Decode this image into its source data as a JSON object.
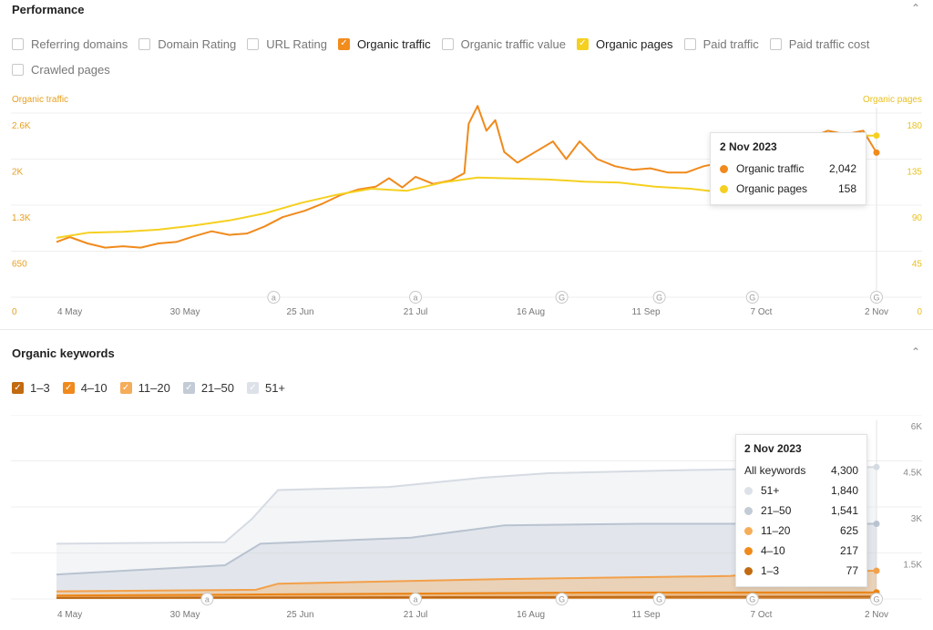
{
  "performance": {
    "title": "Performance",
    "checkboxes": [
      {
        "label": "Referring domains",
        "checked": false,
        "color": ""
      },
      {
        "label": "Domain Rating",
        "checked": false,
        "color": ""
      },
      {
        "label": "URL Rating",
        "checked": false,
        "color": ""
      },
      {
        "label": "Organic traffic",
        "checked": true,
        "color": "#f28c1c"
      },
      {
        "label": "Organic traffic value",
        "checked": false,
        "color": ""
      },
      {
        "label": "Organic pages",
        "checked": true,
        "color": "#f5d020"
      },
      {
        "label": "Paid traffic",
        "checked": false,
        "color": ""
      },
      {
        "label": "Paid traffic cost",
        "checked": false,
        "color": ""
      },
      {
        "label": "Crawled pages",
        "checked": false,
        "color": ""
      }
    ]
  },
  "keywords": {
    "title": "Organic keywords",
    "checkboxes": [
      {
        "label": "1–3",
        "color": "#c26a12"
      },
      {
        "label": "4–10",
        "color": "#f08a1c"
      },
      {
        "label": "11–20",
        "color": "#f5ad5a"
      },
      {
        "label": "21–50",
        "color": "#c3cbd6"
      },
      {
        "label": "51+",
        "color": "#dde1e8"
      }
    ]
  },
  "tooltip1": {
    "date": "2 Nov 2023",
    "rows": [
      {
        "label": "Organic traffic",
        "value": "2,042",
        "color": "#f08a1c"
      },
      {
        "label": "Organic pages",
        "value": "158",
        "color": "#f5d020"
      }
    ]
  },
  "tooltip2": {
    "date": "2 Nov 2023",
    "rows": [
      {
        "label": "All keywords",
        "value": "4,300",
        "color": ""
      },
      {
        "label": "51+",
        "value": "1,840",
        "color": "#dde1e8"
      },
      {
        "label": "21–50",
        "value": "1,541",
        "color": "#c3cbd6"
      },
      {
        "label": "11–20",
        "value": "625",
        "color": "#f5ad5a"
      },
      {
        "label": "4–10",
        "value": "217",
        "color": "#f08a1c"
      },
      {
        "label": "1–3",
        "value": "77",
        "color": "#c26a12"
      }
    ]
  },
  "chart_data": [
    {
      "type": "line",
      "left_axis_label": "Organic traffic",
      "right_axis_label": "Organic pages",
      "ylim_left": [
        0,
        2600
      ],
      "ylim_right": [
        0,
        180
      ],
      "y_ticks_left": [
        "0",
        "650",
        "1.3K",
        "2K",
        "2.6K"
      ],
      "y_ticks_right": [
        "0",
        "45",
        "90",
        "135",
        "180"
      ],
      "x_ticks": [
        "4 May",
        "30 May",
        "25 Jun",
        "21 Jul",
        "16 Aug",
        "11 Sep",
        "7 Oct",
        "2 Nov"
      ],
      "x_range": [
        "2023-05-01",
        "2023-11-02"
      ],
      "markers": [
        {
          "date": "2023-06-19",
          "label": "a"
        },
        {
          "date": "2023-07-21",
          "label": "a"
        },
        {
          "date": "2023-08-23",
          "label": "G"
        },
        {
          "date": "2023-09-14",
          "label": "G"
        },
        {
          "date": "2023-10-05",
          "label": "G"
        },
        {
          "date": "2023-11-02",
          "label": "G"
        }
      ],
      "series": [
        {
          "name": "Organic traffic",
          "axis": "left",
          "color": "#f08a1c",
          "points": [
            [
              "2023-05-01",
              780
            ],
            [
              "2023-05-04",
              850
            ],
            [
              "2023-05-08",
              760
            ],
            [
              "2023-05-12",
              700
            ],
            [
              "2023-05-16",
              720
            ],
            [
              "2023-05-20",
              700
            ],
            [
              "2023-05-24",
              760
            ],
            [
              "2023-05-28",
              780
            ],
            [
              "2023-06-01",
              860
            ],
            [
              "2023-06-05",
              930
            ],
            [
              "2023-06-09",
              880
            ],
            [
              "2023-06-13",
              900
            ],
            [
              "2023-06-17",
              1000
            ],
            [
              "2023-06-21",
              1130
            ],
            [
              "2023-06-26",
              1220
            ],
            [
              "2023-06-30",
              1320
            ],
            [
              "2023-07-04",
              1440
            ],
            [
              "2023-07-08",
              1520
            ],
            [
              "2023-07-12",
              1560
            ],
            [
              "2023-07-15",
              1680
            ],
            [
              "2023-07-18",
              1550
            ],
            [
              "2023-07-21",
              1700
            ],
            [
              "2023-07-25",
              1600
            ],
            [
              "2023-07-29",
              1650
            ],
            [
              "2023-08-01",
              1750
            ],
            [
              "2023-08-02",
              2450
            ],
            [
              "2023-08-04",
              2700
            ],
            [
              "2023-08-06",
              2350
            ],
            [
              "2023-08-08",
              2500
            ],
            [
              "2023-08-10",
              2050
            ],
            [
              "2023-08-13",
              1900
            ],
            [
              "2023-08-17",
              2050
            ],
            [
              "2023-08-21",
              2200
            ],
            [
              "2023-08-24",
              1950
            ],
            [
              "2023-08-27",
              2200
            ],
            [
              "2023-08-31",
              1950
            ],
            [
              "2023-09-04",
              1850
            ],
            [
              "2023-09-08",
              1800
            ],
            [
              "2023-09-12",
              1820
            ],
            [
              "2023-09-16",
              1760
            ],
            [
              "2023-09-20",
              1760
            ],
            [
              "2023-09-24",
              1850
            ],
            [
              "2023-09-28",
              1900
            ],
            [
              "2023-10-02",
              2050
            ],
            [
              "2023-10-06",
              2100
            ],
            [
              "2023-10-10",
              2200
            ],
            [
              "2023-10-14",
              2150
            ],
            [
              "2023-10-18",
              2250
            ],
            [
              "2023-10-22",
              2350
            ],
            [
              "2023-10-26",
              2300
            ],
            [
              "2023-10-30",
              2350
            ],
            [
              "2023-11-02",
              2042
            ]
          ]
        },
        {
          "name": "Organic pages",
          "axis": "right",
          "color": "#f5d020",
          "points": [
            [
              "2023-05-01",
              58
            ],
            [
              "2023-05-08",
              63
            ],
            [
              "2023-05-16",
              64
            ],
            [
              "2023-05-24",
              66
            ],
            [
              "2023-06-01",
              70
            ],
            [
              "2023-06-09",
              75
            ],
            [
              "2023-06-17",
              82
            ],
            [
              "2023-06-25",
              92
            ],
            [
              "2023-07-03",
              100
            ],
            [
              "2023-07-11",
              106
            ],
            [
              "2023-07-19",
              104
            ],
            [
              "2023-07-27",
              112
            ],
            [
              "2023-08-04",
              117
            ],
            [
              "2023-08-12",
              116
            ],
            [
              "2023-08-20",
              115
            ],
            [
              "2023-08-28",
              113
            ],
            [
              "2023-09-05",
              112
            ],
            [
              "2023-09-13",
              108
            ],
            [
              "2023-09-21",
              106
            ],
            [
              "2023-09-29",
              102
            ],
            [
              "2023-10-07",
              104
            ],
            [
              "2023-10-15",
              150
            ],
            [
              "2023-10-23",
              156
            ],
            [
              "2023-10-30",
              158
            ],
            [
              "2023-11-02",
              158
            ]
          ]
        }
      ]
    },
    {
      "type": "area",
      "stacked": false,
      "ylim_right": [
        0,
        6000
      ],
      "y_ticks_right": [
        "1.5K",
        "3K",
        "4.5K",
        "6K"
      ],
      "x_ticks": [
        "4 May",
        "30 May",
        "25 Jun",
        "21 Jul",
        "16 Aug",
        "11 Sep",
        "7 Oct",
        "2 Nov"
      ],
      "x_range": [
        "2023-05-01",
        "2023-11-02"
      ],
      "markers": [
        {
          "date": "2023-06-04",
          "label": "a"
        },
        {
          "date": "2023-07-21",
          "label": "a"
        },
        {
          "date": "2023-08-23",
          "label": "G"
        },
        {
          "date": "2023-09-14",
          "label": "G"
        },
        {
          "date": "2023-10-05",
          "label": "G"
        },
        {
          "date": "2023-11-02",
          "label": "G"
        }
      ],
      "series": [
        {
          "name": "51+",
          "color": "#dde1e8",
          "points": [
            [
              "2023-05-01",
              1800
            ],
            [
              "2023-06-08",
              1850
            ],
            [
              "2023-06-14",
              2600
            ],
            [
              "2023-06-20",
              3550
            ],
            [
              "2023-07-15",
              3650
            ],
            [
              "2023-08-05",
              3950
            ],
            [
              "2023-08-20",
              4100
            ],
            [
              "2023-09-20",
              4200
            ],
            [
              "2023-11-02",
              4300
            ]
          ]
        },
        {
          "name": "21–50",
          "color": "#c3cbd6",
          "points": [
            [
              "2023-05-01",
              800
            ],
            [
              "2023-06-08",
              1100
            ],
            [
              "2023-06-16",
              1800
            ],
            [
              "2023-07-20",
              2000
            ],
            [
              "2023-08-10",
              2400
            ],
            [
              "2023-09-10",
              2450
            ],
            [
              "2023-11-02",
              2450
            ]
          ]
        },
        {
          "name": "11–20",
          "color": "#f5ad5a",
          "points": [
            [
              "2023-05-01",
              250
            ],
            [
              "2023-06-15",
              300
            ],
            [
              "2023-06-20",
              500
            ],
            [
              "2023-08-10",
              650
            ],
            [
              "2023-09-30",
              750
            ],
            [
              "2023-10-10",
              900
            ],
            [
              "2023-11-02",
              920
            ]
          ]
        },
        {
          "name": "4–10",
          "color": "#f08a1c",
          "points": [
            [
              "2023-05-01",
              110
            ],
            [
              "2023-06-20",
              150
            ],
            [
              "2023-09-01",
              210
            ],
            [
              "2023-11-02",
              217
            ]
          ]
        },
        {
          "name": "1–3",
          "color": "#c26a12",
          "points": [
            [
              "2023-05-01",
              40
            ],
            [
              "2023-08-01",
              60
            ],
            [
              "2023-11-02",
              77
            ]
          ]
        }
      ]
    }
  ]
}
